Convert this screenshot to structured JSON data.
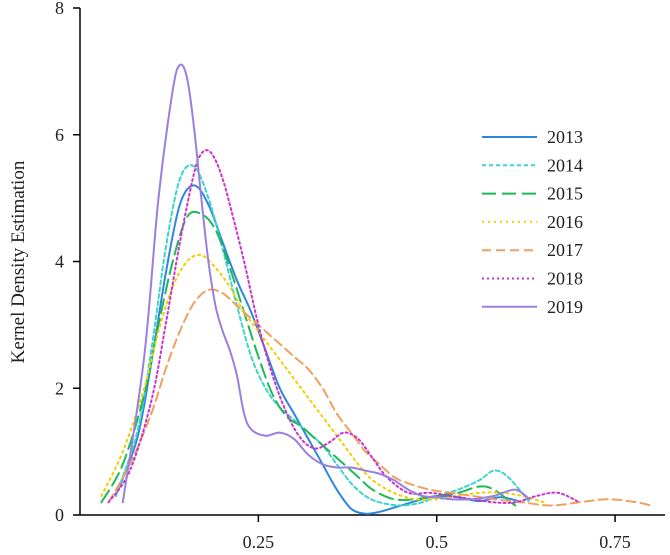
{
  "chart_data": {
    "type": "line",
    "title": "",
    "xlabel": "",
    "ylabel": "Kernel Density Estimation",
    "xlim": [
      0.0,
      0.82
    ],
    "ylim": [
      0,
      8
    ],
    "xticks": [
      0.25,
      0.5,
      0.75
    ],
    "xtick_labels": [
      "0.25",
      "0.5",
      "0.75"
    ],
    "yticks": [
      0,
      2,
      4,
      6,
      8
    ],
    "ytick_labels": [
      "0",
      "2",
      "4",
      "6",
      "8"
    ],
    "grid": false,
    "legend_position": "right",
    "series": [
      {
        "name": "2013",
        "color": "#2E86DE",
        "dash": "solid",
        "x": [
          0.05,
          0.08,
          0.1,
          0.12,
          0.14,
          0.16,
          0.18,
          0.2,
          0.22,
          0.24,
          0.26,
          0.28,
          0.3,
          0.32,
          0.34,
          0.36,
          0.38,
          0.4,
          0.42,
          0.45,
          0.48,
          0.5,
          0.53,
          0.56,
          0.59,
          0.62
        ],
        "y": [
          0.3,
          1.2,
          2.4,
          3.8,
          4.9,
          5.2,
          4.9,
          4.3,
          3.7,
          3.2,
          2.6,
          2.0,
          1.6,
          1.2,
          0.8,
          0.4,
          0.1,
          0.02,
          0.05,
          0.15,
          0.25,
          0.3,
          0.28,
          0.22,
          0.28,
          0.2
        ]
      },
      {
        "name": "2014",
        "color": "#3FD4C9",
        "dash": "4,3",
        "x": [
          0.05,
          0.08,
          0.1,
          0.12,
          0.14,
          0.16,
          0.18,
          0.2,
          0.22,
          0.24,
          0.26,
          0.28,
          0.3,
          0.32,
          0.34,
          0.36,
          0.38,
          0.4,
          0.42,
          0.45,
          0.48,
          0.5,
          0.53,
          0.56,
          0.58,
          0.6,
          0.63
        ],
        "y": [
          0.3,
          1.3,
          2.6,
          4.2,
          5.3,
          5.5,
          5.0,
          4.2,
          3.3,
          2.5,
          2.0,
          1.7,
          1.5,
          1.3,
          1.1,
          0.8,
          0.5,
          0.3,
          0.2,
          0.15,
          0.2,
          0.3,
          0.4,
          0.55,
          0.7,
          0.6,
          0.2
        ]
      },
      {
        "name": "2015",
        "color": "#1DB954",
        "dash": "14,6",
        "x": [
          0.03,
          0.06,
          0.09,
          0.11,
          0.13,
          0.15,
          0.17,
          0.19,
          0.21,
          0.23,
          0.25,
          0.27,
          0.29,
          0.31,
          0.33,
          0.35,
          0.37,
          0.39,
          0.41,
          0.44,
          0.47,
          0.5,
          0.53,
          0.56,
          0.58,
          0.61
        ],
        "y": [
          0.2,
          0.8,
          1.9,
          3.0,
          4.0,
          4.7,
          4.75,
          4.5,
          3.9,
          3.2,
          2.5,
          1.9,
          1.55,
          1.4,
          1.2,
          1.0,
          0.8,
          0.6,
          0.4,
          0.25,
          0.25,
          0.3,
          0.35,
          0.45,
          0.4,
          0.15
        ]
      },
      {
        "name": "2016",
        "color": "#F5CC00",
        "dash": "2,4",
        "x": [
          0.03,
          0.06,
          0.09,
          0.11,
          0.13,
          0.15,
          0.17,
          0.19,
          0.21,
          0.23,
          0.25,
          0.27,
          0.29,
          0.31,
          0.33,
          0.35,
          0.37,
          0.39,
          0.41,
          0.44,
          0.47,
          0.5,
          0.53,
          0.56,
          0.59,
          0.62,
          0.65
        ],
        "y": [
          0.3,
          1.0,
          2.0,
          2.9,
          3.6,
          4.0,
          4.1,
          3.9,
          3.6,
          3.2,
          2.9,
          2.6,
          2.3,
          2.0,
          1.7,
          1.4,
          1.1,
          0.8,
          0.55,
          0.35,
          0.25,
          0.25,
          0.3,
          0.35,
          0.35,
          0.3,
          0.2
        ]
      },
      {
        "name": "2017",
        "color": "#F0A060",
        "dash": "9,5",
        "x": [
          0.04,
          0.07,
          0.1,
          0.12,
          0.14,
          0.16,
          0.18,
          0.2,
          0.22,
          0.24,
          0.26,
          0.28,
          0.3,
          0.32,
          0.34,
          0.36,
          0.38,
          0.4,
          0.42,
          0.44,
          0.46,
          0.49,
          0.52,
          0.55,
          0.58,
          0.62,
          0.66,
          0.7,
          0.74,
          0.78,
          0.8
        ],
        "y": [
          0.2,
          0.8,
          1.6,
          2.3,
          2.9,
          3.35,
          3.55,
          3.5,
          3.3,
          3.1,
          2.9,
          2.7,
          2.5,
          2.3,
          2.0,
          1.6,
          1.3,
          1.0,
          0.8,
          0.6,
          0.5,
          0.4,
          0.35,
          0.3,
          0.25,
          0.2,
          0.15,
          0.2,
          0.25,
          0.2,
          0.15
        ]
      },
      {
        "name": "2018",
        "color": "#CC33CC",
        "dash": "2,3",
        "x": [
          0.04,
          0.07,
          0.1,
          0.12,
          0.14,
          0.16,
          0.17,
          0.18,
          0.19,
          0.2,
          0.21,
          0.23,
          0.25,
          0.27,
          0.29,
          0.31,
          0.33,
          0.35,
          0.37,
          0.39,
          0.41,
          0.43,
          0.46,
          0.49,
          0.52,
          0.55,
          0.58,
          0.61,
          0.64,
          0.67,
          0.7
        ],
        "y": [
          0.2,
          0.7,
          1.8,
          3.0,
          4.3,
          5.4,
          5.7,
          5.75,
          5.6,
          5.3,
          4.9,
          4.0,
          3.0,
          2.2,
          1.6,
          1.2,
          1.05,
          1.15,
          1.3,
          1.2,
          0.9,
          0.6,
          0.35,
          0.35,
          0.3,
          0.25,
          0.2,
          0.2,
          0.3,
          0.35,
          0.2
        ]
      },
      {
        "name": "2019",
        "color": "#9A7FE0",
        "dash": "solid",
        "x": [
          0.06,
          0.09,
          0.11,
          0.13,
          0.14,
          0.15,
          0.16,
          0.17,
          0.18,
          0.19,
          0.2,
          0.21,
          0.22,
          0.23,
          0.24,
          0.26,
          0.28,
          0.3,
          0.32,
          0.34,
          0.36,
          0.38,
          0.4,
          0.42,
          0.44,
          0.46,
          0.48,
          0.5,
          0.52,
          0.55,
          0.58,
          0.61,
          0.63
        ],
        "y": [
          0.2,
          2.5,
          5.0,
          6.7,
          7.1,
          6.9,
          6.1,
          5.0,
          4.0,
          3.3,
          2.9,
          2.6,
          2.2,
          1.6,
          1.35,
          1.25,
          1.3,
          1.2,
          0.95,
          0.8,
          0.75,
          0.75,
          0.7,
          0.65,
          0.55,
          0.4,
          0.3,
          0.28,
          0.25,
          0.25,
          0.3,
          0.4,
          0.25
        ]
      }
    ]
  }
}
